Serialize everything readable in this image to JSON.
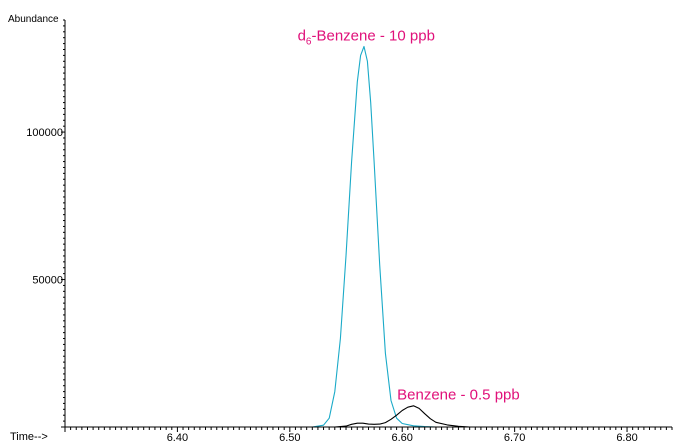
{
  "chart_data": {
    "type": "line",
    "ylabel": "Abundance",
    "xlabel": "Time-->",
    "xlim": [
      6.3,
      6.84
    ],
    "ylim": [
      0,
      138000
    ],
    "x_ticks": [
      "6.40",
      "6.50",
      "6.60",
      "6.70",
      "6.80"
    ],
    "y_ticks": [
      "50000",
      "100000"
    ],
    "x_tick_values": [
      6.4,
      6.5,
      6.6,
      6.7,
      6.8
    ],
    "y_tick_values": [
      50000,
      100000
    ],
    "grid": false,
    "annotations": [
      {
        "name": "d6",
        "base": "d",
        "sub": "6",
        "rest": "-Benzene - 10 ppb",
        "x": 6.568,
        "y": 131000,
        "color": "#e0107a"
      },
      {
        "name": "benzene",
        "text": "Benzene - 0.5 ppb",
        "x": 6.65,
        "y": 9300,
        "color": "#e0107a"
      }
    ],
    "series": [
      {
        "color": "#1aaac8",
        "x": [
          6.3,
          6.52,
          6.53,
          6.535,
          6.54,
          6.545,
          6.55,
          6.555,
          6.56,
          6.563,
          6.566,
          6.569,
          6.572,
          6.575,
          6.58,
          6.585,
          6.59,
          6.595,
          6.6,
          6.61,
          6.62,
          6.63,
          6.84
        ],
        "y": [
          0,
          0,
          600,
          3000,
          12000,
          30000,
          58000,
          90000,
          117000,
          126000,
          129000,
          124000,
          110000,
          90000,
          55000,
          25000,
          9000,
          3000,
          1200,
          400,
          150,
          0,
          0
        ]
      },
      {
        "color": "#000000",
        "x": [
          6.3,
          6.54,
          6.55,
          6.555,
          6.56,
          6.565,
          6.57,
          6.575,
          6.58,
          6.585,
          6.59,
          6.595,
          6.6,
          6.605,
          6.61,
          6.615,
          6.62,
          6.625,
          6.63,
          6.64,
          6.65,
          6.66,
          6.84
        ],
        "y": [
          0,
          0,
          300,
          900,
          1300,
          1300,
          1000,
          900,
          1000,
          1500,
          2600,
          4000,
          5600,
          6700,
          7200,
          6300,
          4500,
          2800,
          1600,
          700,
          250,
          0,
          0
        ]
      }
    ]
  }
}
